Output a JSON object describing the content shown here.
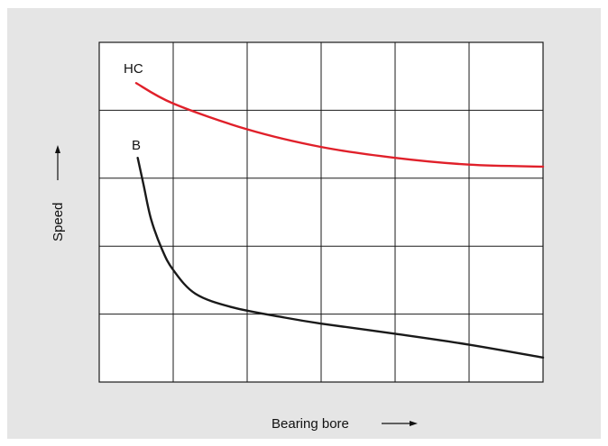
{
  "colors": {
    "panel_bg": "#e5e5e5",
    "plot_bg": "#ffffff",
    "grid": "#1a1a1a",
    "hc": "#e0202a",
    "b": "#1a1a1a"
  },
  "chart_data": {
    "type": "line",
    "title": "",
    "xlabel": "Bearing bore",
    "ylabel": "Speed",
    "xlim": [
      0,
      6
    ],
    "ylim": [
      0,
      5
    ],
    "grid": true,
    "x_ticks_shown": false,
    "y_ticks_shown": false,
    "series": [
      {
        "name": "HC",
        "color": "#e0202a",
        "points": [
          [
            0.5,
            4.4
          ],
          [
            1.0,
            4.1
          ],
          [
            2.0,
            3.72
          ],
          [
            3.0,
            3.46
          ],
          [
            4.0,
            3.3
          ],
          [
            5.0,
            3.2
          ],
          [
            6.0,
            3.17
          ]
        ]
      },
      {
        "name": "B",
        "color": "#1a1a1a",
        "points": [
          [
            0.52,
            3.3
          ],
          [
            0.6,
            2.9
          ],
          [
            0.7,
            2.4
          ],
          [
            0.85,
            1.95
          ],
          [
            1.0,
            1.65
          ],
          [
            1.3,
            1.3
          ],
          [
            1.8,
            1.1
          ],
          [
            2.5,
            0.95
          ],
          [
            3.0,
            0.86
          ],
          [
            4.0,
            0.71
          ],
          [
            5.0,
            0.55
          ],
          [
            6.0,
            0.36
          ]
        ]
      }
    ]
  }
}
